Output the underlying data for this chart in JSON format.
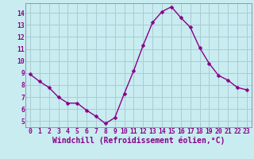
{
  "x": [
    0,
    1,
    2,
    3,
    4,
    5,
    6,
    7,
    8,
    9,
    10,
    11,
    12,
    13,
    14,
    15,
    16,
    17,
    18,
    19,
    20,
    21,
    22,
    23
  ],
  "y": [
    8.9,
    8.3,
    7.8,
    7.0,
    6.5,
    6.5,
    5.9,
    5.4,
    4.8,
    5.3,
    7.3,
    9.2,
    11.3,
    13.2,
    14.1,
    14.5,
    13.6,
    12.8,
    11.1,
    9.8,
    8.8,
    8.4,
    7.8,
    7.6
  ],
  "line_color": "#880088",
  "marker": "D",
  "marker_size": 2.5,
  "xlabel": "Windchill (Refroidissement éolien,°C)",
  "xlabel_color": "#880088",
  "background_color": "#c8ecf0",
  "grid_color": "#aaccd4",
  "xlim": [
    -0.5,
    23.5
  ],
  "ylim": [
    4.5,
    14.8
  ],
  "yticks": [
    5,
    6,
    7,
    8,
    9,
    10,
    11,
    12,
    13,
    14
  ],
  "xticks": [
    0,
    1,
    2,
    3,
    4,
    5,
    6,
    7,
    8,
    9,
    10,
    11,
    12,
    13,
    14,
    15,
    16,
    17,
    18,
    19,
    20,
    21,
    22,
    23
  ],
  "tick_label_fontsize": 5.8,
  "xlabel_fontsize": 7.0,
  "spine_color": "#8888aa"
}
